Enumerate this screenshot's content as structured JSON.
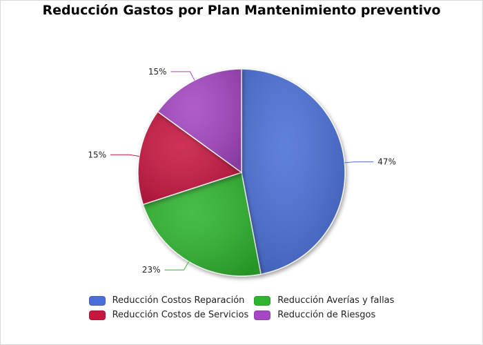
{
  "chart_data": {
    "type": "pie",
    "title": "Reducción Gastos por Plan Mantenimiento preventivo",
    "slices": [
      {
        "name": "Reducción Costos Reparación",
        "value": 47,
        "label": "47%",
        "color": "#4a6fd8"
      },
      {
        "name": "Reducción Averías y fallas",
        "value": 23,
        "label": "23%",
        "color": "#2fb52f"
      },
      {
        "name": "Reducción Costos de Servicios",
        "value": 15,
        "label": "15%",
        "color": "#c8163f"
      },
      {
        "name": "Reducción de Riesgos",
        "value": 15,
        "label": "15%",
        "color": "#a547c3"
      }
    ],
    "start_angle_deg": 0,
    "direction": "clockwise",
    "legend_position": "bottom",
    "legend": [
      "Reducción Costos Reparación",
      "Reducción Averías y fallas",
      "Reducción Costos de Servicios",
      "Reducción de Riesgos"
    ]
  }
}
